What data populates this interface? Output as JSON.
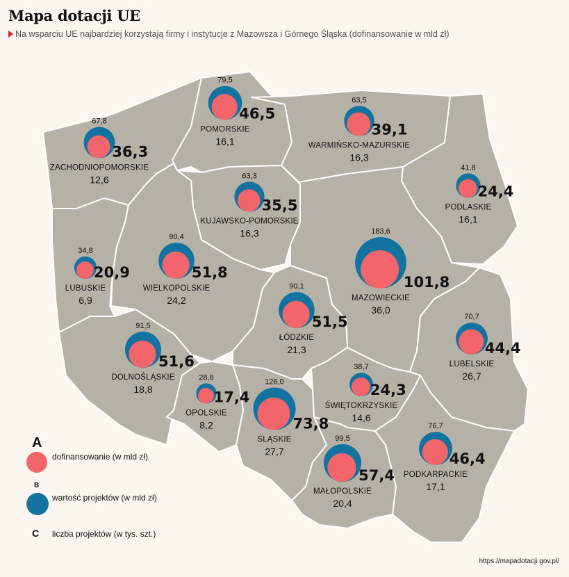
{
  "title": "Mapa dotacji UE",
  "subtitle": "Na wsparciu UE najbardziej korzystają firmy i instytucje z Mazowsza i Górnego Śląska (dofinansowanie w mld zł)",
  "colors": {
    "dofinansowanie": "#f2656b",
    "wartosc": "#1273a0",
    "land": "#b5b1a6",
    "background": "#fbf6ef",
    "accent": "#e0202a"
  },
  "legend": {
    "a_letter": "A",
    "a_label": "dofinansowanie (w mld zł)",
    "b_letter": "B",
    "b_label": "wartość projektów (w mld zł)",
    "c_letter": "C",
    "c_label": "liczba projektów (w tys. szt.)"
  },
  "source": "https://mapadotacji.gov.pl/",
  "regions": [
    {
      "name": "ZACHODNIOPOMORSKIE",
      "wartosc_label": "67,8",
      "dofinansowanie_label": "36,3",
      "projekty_label": "12,6",
      "wartosc": 67.8,
      "dofinansowanie": 36.3
    },
    {
      "name": "POMORSKIE",
      "wartosc_label": "79,5",
      "dofinansowanie_label": "46,5",
      "projekty_label": "16,1",
      "wartosc": 79.5,
      "dofinansowanie": 46.5
    },
    {
      "name": "WARMIŃSKO-MAZURSKIE",
      "wartosc_label": "63,5",
      "dofinansowanie_label": "39,1",
      "projekty_label": "16,3",
      "wartosc": 63.5,
      "dofinansowanie": 39.1
    },
    {
      "name": "KUJAWSKO-POMORSKIE",
      "wartosc_label": "63,3",
      "dofinansowanie_label": "35,5",
      "projekty_label": "16,3",
      "wartosc": 63.3,
      "dofinansowanie": 35.5
    },
    {
      "name": "PODLASKIE",
      "wartosc_label": "41,8",
      "dofinansowanie_label": "24,4",
      "projekty_label": "16,1",
      "wartosc": 41.8,
      "dofinansowanie": 24.4
    },
    {
      "name": "LUBUSKIE",
      "wartosc_label": "34,8",
      "dofinansowanie_label": "20,9",
      "projekty_label": "6,9",
      "wartosc": 34.8,
      "dofinansowanie": 20.9
    },
    {
      "name": "WIELKOPOLSKIE",
      "wartosc_label": "90,4",
      "dofinansowanie_label": "51,8",
      "projekty_label": "24,2",
      "wartosc": 90.4,
      "dofinansowanie": 51.8
    },
    {
      "name": "MAZOWIECKIE",
      "wartosc_label": "183,6",
      "dofinansowanie_label": "101,8",
      "projekty_label": "36,0",
      "wartosc": 183.6,
      "dofinansowanie": 101.8
    },
    {
      "name": "ŁÓDZKIE",
      "wartosc_label": "90,1",
      "dofinansowanie_label": "51,5",
      "projekty_label": "21,3",
      "wartosc": 90.1,
      "dofinansowanie": 51.5
    },
    {
      "name": "DOLNOŚLĄSKIE",
      "wartosc_label": "91,5",
      "dofinansowanie_label": "51,6",
      "projekty_label": "18,8",
      "wartosc": 91.5,
      "dofinansowanie": 51.6
    },
    {
      "name": "LUBELSKIE",
      "wartosc_label": "70,7",
      "dofinansowanie_label": "44,4",
      "projekty_label": "26,7",
      "wartosc": 70.7,
      "dofinansowanie": 44.4
    },
    {
      "name": "OPOLSKIE",
      "wartosc_label": "28,8",
      "dofinansowanie_label": "17,4",
      "projekty_label": "8,2",
      "wartosc": 28.8,
      "dofinansowanie": 17.4
    },
    {
      "name": "ŚLĄSKIE",
      "wartosc_label": "126,0",
      "dofinansowanie_label": "73,8",
      "projekty_label": "27,7",
      "wartosc": 126.0,
      "dofinansowanie": 73.8
    },
    {
      "name": "ŚWIĘTOKRZYSKIE",
      "wartosc_label": "38,7",
      "dofinansowanie_label": "24,3",
      "projekty_label": "14,6",
      "wartosc": 38.7,
      "dofinansowanie": 24.3
    },
    {
      "name": "PODKARPACKIE",
      "wartosc_label": "76,7",
      "dofinansowanie_label": "46,4",
      "projekty_label": "17,1",
      "wartosc": 76.7,
      "dofinansowanie": 46.4
    },
    {
      "name": "MAŁOPOLSKIE",
      "wartosc_label": "99,5",
      "dofinansowanie_label": "57,4",
      "projekty_label": "20,4",
      "wartosc": 99.5,
      "dofinansowanie": 57.4
    }
  ]
}
